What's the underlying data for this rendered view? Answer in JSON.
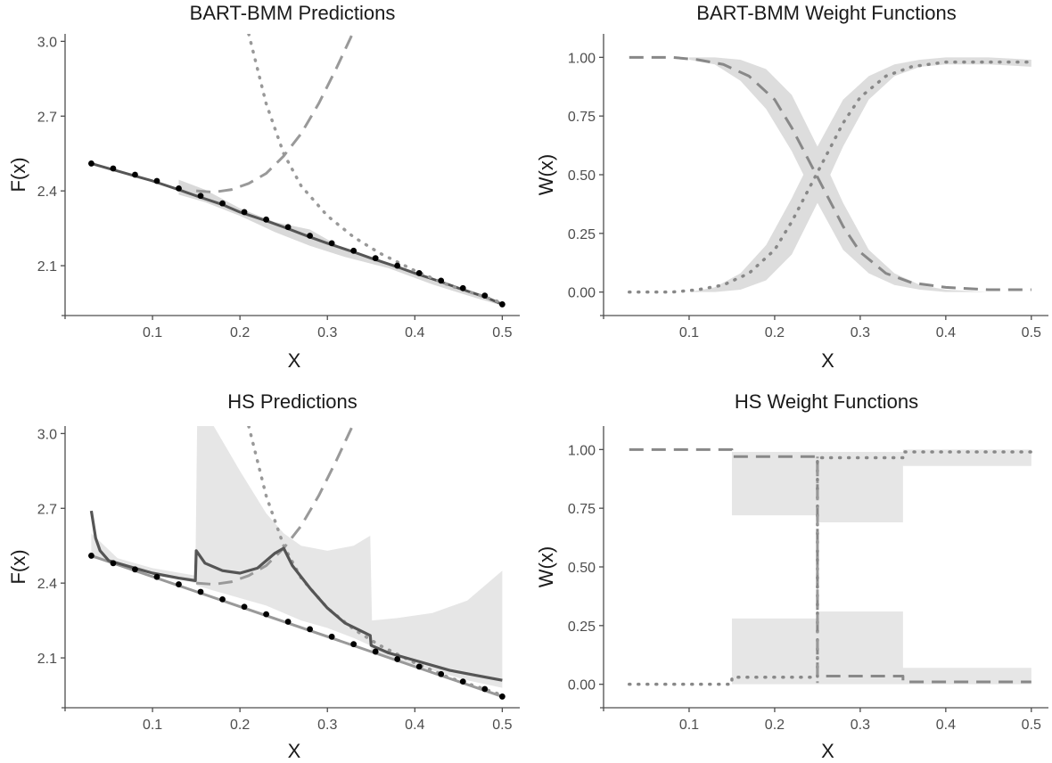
{
  "chart_data": [
    {
      "type": "line",
      "title": "BART-BMM Predictions",
      "xlabel": "X",
      "ylabel": "F(x)",
      "xlim": [
        0.0,
        0.52
      ],
      "ylim": [
        1.9,
        3.03
      ],
      "xticks": [
        0.1,
        0.2,
        0.3,
        0.4,
        0.5
      ],
      "xtick_labels": [
        "0.1",
        "0.2",
        "0.3",
        "0.4",
        "0.5"
      ],
      "yticks": [
        2.1,
        2.4,
        2.7,
        3.0
      ],
      "ytick_labels": [
        "2.1",
        "2.4",
        "2.7",
        "3.0"
      ],
      "grid": false,
      "series": [
        {
          "style": "band",
          "color": "#d9d9d9",
          "x": [
            0.13,
            0.16,
            0.2,
            0.24,
            0.28,
            0.32,
            0.37,
            0.42,
            0.47,
            0.5
          ],
          "low": [
            2.385,
            2.355,
            2.3,
            2.235,
            2.18,
            2.135,
            2.09,
            2.025,
            1.97,
            1.94
          ],
          "high": [
            2.445,
            2.405,
            2.33,
            2.275,
            2.245,
            2.165,
            2.105,
            2.04,
            1.985,
            1.95
          ]
        },
        {
          "style": "solid",
          "color": "#555555",
          "width": 3,
          "x": [
            0.03,
            0.05,
            0.08,
            0.1,
            0.13,
            0.15,
            0.18,
            0.2,
            0.23,
            0.25,
            0.28,
            0.3,
            0.33,
            0.35,
            0.38,
            0.4,
            0.43,
            0.45,
            0.48,
            0.5
          ],
          "y": [
            2.51,
            2.49,
            2.46,
            2.44,
            2.405,
            2.38,
            2.345,
            2.315,
            2.28,
            2.255,
            2.215,
            2.19,
            2.155,
            2.13,
            2.095,
            2.07,
            2.035,
            2.01,
            1.975,
            1.945
          ]
        },
        {
          "style": "dashed",
          "color": "#999999",
          "width": 3,
          "x": [
            0.15,
            0.17,
            0.19,
            0.21,
            0.23,
            0.25,
            0.27,
            0.29,
            0.31,
            0.33
          ],
          "y": [
            2.4,
            2.395,
            2.405,
            2.43,
            2.47,
            2.54,
            2.63,
            2.75,
            2.89,
            3.04
          ]
        },
        {
          "style": "dotted",
          "color": "#999999",
          "width": 3.5,
          "x": [
            0.21,
            0.23,
            0.25,
            0.27,
            0.3,
            0.33,
            0.36,
            0.4,
            0.44,
            0.48,
            0.5
          ],
          "y": [
            3.03,
            2.75,
            2.55,
            2.42,
            2.3,
            2.215,
            2.15,
            2.08,
            2.02,
            1.975,
            1.95
          ]
        },
        {
          "style": "points",
          "color": "#000000",
          "x": [
            0.03,
            0.055,
            0.08,
            0.105,
            0.13,
            0.155,
            0.18,
            0.205,
            0.23,
            0.255,
            0.28,
            0.305,
            0.33,
            0.355,
            0.38,
            0.405,
            0.43,
            0.455,
            0.48,
            0.5
          ],
          "y": [
            2.51,
            2.49,
            2.465,
            2.44,
            2.41,
            2.38,
            2.35,
            2.315,
            2.285,
            2.255,
            2.22,
            2.19,
            2.16,
            2.13,
            2.1,
            2.07,
            2.04,
            2.01,
            1.98,
            1.945
          ]
        }
      ]
    },
    {
      "type": "line",
      "title": "BART-BMM Weight Functions",
      "xlabel": "X",
      "ylabel": "W(x)",
      "xlim": [
        0.0,
        0.52
      ],
      "ylim": [
        -0.1,
        1.1
      ],
      "xticks": [
        0.1,
        0.2,
        0.3,
        0.4,
        0.5
      ],
      "xtick_labels": [
        "0.1",
        "0.2",
        "0.3",
        "0.4",
        "0.5"
      ],
      "yticks": [
        0.0,
        0.25,
        0.5,
        0.75,
        1.0
      ],
      "ytick_labels": [
        "0.00",
        "0.25",
        "0.50",
        "0.75",
        "1.00"
      ],
      "grid": false,
      "series": [
        {
          "style": "band",
          "color": "#dddddd",
          "x": [
            0.1,
            0.13,
            0.16,
            0.19,
            0.22,
            0.25,
            0.28,
            0.31,
            0.34,
            0.37,
            0.4,
            0.45,
            0.5
          ],
          "low": [
            0.99,
            0.97,
            0.9,
            0.78,
            0.6,
            0.38,
            0.18,
            0.08,
            0.03,
            0.01,
            0.0,
            0.0,
            0.0
          ],
          "high": [
            1.0,
            1.0,
            0.99,
            0.95,
            0.84,
            0.62,
            0.38,
            0.18,
            0.08,
            0.03,
            0.01,
            0.0,
            0.0
          ]
        },
        {
          "style": "band",
          "color": "#dddddd",
          "x": [
            0.1,
            0.13,
            0.16,
            0.19,
            0.22,
            0.25,
            0.28,
            0.31,
            0.34,
            0.37,
            0.4,
            0.45,
            0.5
          ],
          "low": [
            0.0,
            0.0,
            0.01,
            0.05,
            0.16,
            0.38,
            0.62,
            0.82,
            0.92,
            0.96,
            0.97,
            0.97,
            0.96
          ],
          "high": [
            0.0,
            0.02,
            0.08,
            0.2,
            0.4,
            0.62,
            0.82,
            0.92,
            0.97,
            0.99,
            1.0,
            1.0,
            0.99
          ]
        },
        {
          "style": "dashed",
          "color": "#888888",
          "width": 3,
          "x": [
            0.03,
            0.08,
            0.11,
            0.14,
            0.17,
            0.2,
            0.22,
            0.24,
            0.26,
            0.28,
            0.3,
            0.33,
            0.36,
            0.4,
            0.45,
            0.5
          ],
          "y": [
            1.0,
            1.0,
            0.99,
            0.97,
            0.92,
            0.82,
            0.7,
            0.56,
            0.42,
            0.28,
            0.17,
            0.08,
            0.04,
            0.02,
            0.01,
            0.01
          ]
        },
        {
          "style": "dotted",
          "color": "#888888",
          "width": 3.5,
          "x": [
            0.03,
            0.08,
            0.11,
            0.14,
            0.17,
            0.2,
            0.22,
            0.24,
            0.26,
            0.28,
            0.3,
            0.33,
            0.36,
            0.4,
            0.45,
            0.5
          ],
          "y": [
            0.0,
            0.0,
            0.01,
            0.03,
            0.08,
            0.18,
            0.3,
            0.44,
            0.58,
            0.72,
            0.83,
            0.92,
            0.96,
            0.98,
            0.98,
            0.98
          ]
        }
      ]
    },
    {
      "type": "line",
      "title": "HS Predictions",
      "xlabel": "X",
      "ylabel": "F(x)",
      "xlim": [
        0.0,
        0.52
      ],
      "ylim": [
        1.9,
        3.03
      ],
      "xticks": [
        0.1,
        0.2,
        0.3,
        0.4,
        0.5
      ],
      "xtick_labels": [
        "0.1",
        "0.2",
        "0.3",
        "0.4",
        "0.5"
      ],
      "yticks": [
        2.1,
        2.4,
        2.7,
        3.0
      ],
      "ytick_labels": [
        "2.1",
        "2.4",
        "2.7",
        "3.0"
      ],
      "grid": false,
      "series": [
        {
          "style": "band",
          "color": "#e6e6e6",
          "x": [
            0.03,
            0.06,
            0.1,
            0.149,
            0.151,
            0.17,
            0.2,
            0.23,
            0.25,
            0.27,
            0.3,
            0.33,
            0.349,
            0.351,
            0.38,
            0.42,
            0.46,
            0.5
          ],
          "low": [
            2.5,
            2.48,
            2.44,
            2.4,
            2.39,
            2.37,
            2.34,
            2.31,
            2.28,
            2.25,
            2.22,
            2.18,
            2.15,
            2.12,
            2.09,
            2.05,
            2.01,
            1.98
          ],
          "high": [
            2.6,
            2.5,
            2.46,
            2.43,
            3.03,
            3.03,
            2.85,
            2.68,
            2.6,
            2.55,
            2.53,
            2.55,
            2.59,
            2.25,
            2.26,
            2.28,
            2.33,
            2.45
          ]
        },
        {
          "style": "solid",
          "color": "#999999",
          "width": 3,
          "x": [
            0.03,
            0.5
          ],
          "y": [
            2.51,
            1.945
          ]
        },
        {
          "style": "dashed",
          "color": "#999999",
          "width": 3,
          "x": [
            0.15,
            0.17,
            0.19,
            0.21,
            0.23,
            0.25,
            0.27,
            0.29,
            0.31,
            0.33
          ],
          "y": [
            2.4,
            2.395,
            2.405,
            2.43,
            2.47,
            2.54,
            2.63,
            2.75,
            2.89,
            3.04
          ]
        },
        {
          "style": "dotted",
          "color": "#999999",
          "width": 3.5,
          "x": [
            0.21,
            0.23,
            0.25,
            0.27,
            0.3,
            0.33,
            0.36,
            0.4,
            0.44,
            0.48,
            0.5
          ],
          "y": [
            3.03,
            2.75,
            2.55,
            2.42,
            2.3,
            2.215,
            2.15,
            2.08,
            2.02,
            1.975,
            1.95
          ]
        },
        {
          "style": "solid",
          "color": "#555555",
          "width": 3.2,
          "x": [
            0.03,
            0.035,
            0.04,
            0.05,
            0.07,
            0.1,
            0.13,
            0.149,
            0.15,
            0.16,
            0.18,
            0.2,
            0.22,
            0.24,
            0.25,
            0.26,
            0.28,
            0.3,
            0.32,
            0.349,
            0.35,
            0.37,
            0.4,
            0.44,
            0.47,
            0.5
          ],
          "y": [
            2.69,
            2.58,
            2.53,
            2.49,
            2.47,
            2.44,
            2.42,
            2.41,
            2.53,
            2.48,
            2.45,
            2.44,
            2.46,
            2.52,
            2.54,
            2.47,
            2.38,
            2.3,
            2.24,
            2.19,
            2.15,
            2.12,
            2.09,
            2.05,
            2.03,
            2.01
          ]
        },
        {
          "style": "points",
          "color": "#000000",
          "x": [
            0.03,
            0.055,
            0.08,
            0.105,
            0.13,
            0.155,
            0.18,
            0.205,
            0.23,
            0.255,
            0.28,
            0.305,
            0.33,
            0.355,
            0.38,
            0.405,
            0.43,
            0.455,
            0.48,
            0.5
          ],
          "y": [
            2.51,
            2.48,
            2.455,
            2.425,
            2.395,
            2.365,
            2.335,
            2.305,
            2.275,
            2.245,
            2.215,
            2.185,
            2.155,
            2.125,
            2.095,
            2.065,
            2.035,
            2.005,
            1.975,
            1.945
          ]
        }
      ]
    },
    {
      "type": "line",
      "title": "HS Weight Functions",
      "xlabel": "X",
      "ylabel": "W(x)",
      "xlim": [
        0.0,
        0.52
      ],
      "ylim": [
        -0.1,
        1.1
      ],
      "xticks": [
        0.1,
        0.2,
        0.3,
        0.4,
        0.5
      ],
      "xtick_labels": [
        "0.1",
        "0.2",
        "0.3",
        "0.4",
        "0.5"
      ],
      "yticks": [
        0.0,
        0.25,
        0.5,
        0.75,
        1.0
      ],
      "ytick_labels": [
        "0.00",
        "0.25",
        "0.50",
        "0.75",
        "1.00"
      ],
      "grid": false,
      "series": [
        {
          "style": "band",
          "color": "#e6e6e6",
          "x": [
            0.15,
            0.25,
            0.25,
            0.35,
            0.35,
            0.5
          ],
          "low": [
            0.72,
            0.72,
            0.69,
            0.69,
            0.93,
            0.93
          ],
          "high": [
            0.99,
            0.99,
            0.99,
            0.99,
            1.0,
            1.0
          ]
        },
        {
          "style": "band",
          "color": "#e6e6e6",
          "x": [
            0.15,
            0.25,
            0.25,
            0.35,
            0.35,
            0.5
          ],
          "low": [
            0.0,
            0.0,
            0.0,
            0.0,
            0.0,
            0.0
          ],
          "high": [
            0.28,
            0.28,
            0.31,
            0.31,
            0.07,
            0.07
          ]
        },
        {
          "style": "dashed",
          "color": "#888888",
          "width": 3,
          "x": [
            0.03,
            0.15,
            0.15,
            0.25,
            0.25,
            0.35,
            0.35,
            0.5
          ],
          "y": [
            1.0,
            1.0,
            0.97,
            0.97,
            0.035,
            0.035,
            0.01,
            0.01
          ]
        },
        {
          "style": "dotted",
          "color": "#888888",
          "width": 3.5,
          "x": [
            0.03,
            0.15,
            0.15,
            0.25,
            0.25,
            0.35,
            0.35,
            0.5
          ],
          "y": [
            0.0,
            0.0,
            0.03,
            0.03,
            0.965,
            0.965,
            0.99,
            0.99
          ]
        },
        {
          "style": "dotdash",
          "color": "#999999",
          "width": 3,
          "x": [
            0.25,
            0.25
          ],
          "y": [
            0.97,
            0.0
          ]
        }
      ]
    }
  ]
}
